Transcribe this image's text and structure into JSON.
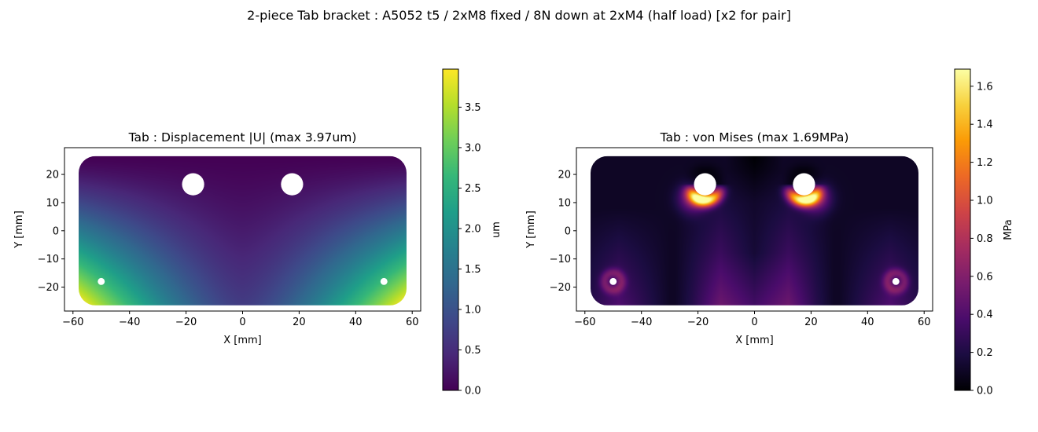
{
  "figure": {
    "suptitle": "2-piece Tab bracket : A5052 t5 / 2xM8 fixed / 8N down at 2xM4 (half load)  [x2 for pair]"
  },
  "chart_data": [
    {
      "type": "heatmap",
      "title": "Tab : Displacement |U|  (max 3.97um)",
      "xlabel": "X [mm]",
      "ylabel": "Y [mm]",
      "xlim": [
        -63,
        63
      ],
      "ylim": [
        -28.5,
        29.5
      ],
      "xticks": [
        -60,
        -40,
        -20,
        0,
        20,
        40,
        60
      ],
      "yticks": [
        -20,
        -10,
        0,
        10,
        20
      ],
      "xticklabels": [
        "−60",
        "−40",
        "−20",
        "0",
        "20",
        "40",
        "60"
      ],
      "yticklabels": [
        "−20",
        "−10",
        "0",
        "10",
        "20"
      ],
      "colormap": "viridis",
      "field": "displacement",
      "plate": {
        "x": [
          -58,
          58
        ],
        "y": [
          -26.5,
          26.5
        ],
        "corner_radius": 6
      },
      "fixed_holes": [
        {
          "x": -17.5,
          "y": 16.5,
          "d": 8
        },
        {
          "x": 17.5,
          "y": 16.5,
          "d": 8
        }
      ],
      "load_holes": [
        {
          "x": -50,
          "y": -18,
          "d": 4
        },
        {
          "x": 50,
          "y": -18,
          "d": 4
        }
      ],
      "max_value": 3.97,
      "colorbar": {
        "label": "um",
        "range": [
          0,
          3.97
        ],
        "ticks": [
          0.0,
          0.5,
          1.0,
          1.5,
          2.0,
          2.5,
          3.0,
          3.5
        ],
        "ticklabels": [
          "0.0",
          "0.5",
          "1.0",
          "1.5",
          "2.0",
          "2.5",
          "3.0",
          "3.5"
        ]
      }
    },
    {
      "type": "heatmap",
      "title": "Tab : von Mises  (max 1.69MPa)",
      "xlabel": "X [mm]",
      "ylabel": "Y [mm]",
      "xlim": [
        -63,
        63
      ],
      "ylim": [
        -28.5,
        29.5
      ],
      "xticks": [
        -60,
        -40,
        -20,
        0,
        20,
        40,
        60
      ],
      "yticks": [
        -20,
        -10,
        0,
        10,
        20
      ],
      "xticklabels": [
        "−60",
        "−40",
        "−20",
        "0",
        "20",
        "40",
        "60"
      ],
      "yticklabels": [
        "−20",
        "−10",
        "0",
        "10",
        "20"
      ],
      "colormap": "inferno",
      "field": "von_mises",
      "plate": {
        "x": [
          -58,
          58
        ],
        "y": [
          -26.5,
          26.5
        ],
        "corner_radius": 6
      },
      "fixed_holes": [
        {
          "x": -17.5,
          "y": 16.5,
          "d": 8
        },
        {
          "x": 17.5,
          "y": 16.5,
          "d": 8
        }
      ],
      "load_holes": [
        {
          "x": -50,
          "y": -18,
          "d": 4
        },
        {
          "x": 50,
          "y": -18,
          "d": 4
        }
      ],
      "max_value": 1.69,
      "colorbar": {
        "label": "MPa",
        "range": [
          0,
          1.69
        ],
        "ticks": [
          0.0,
          0.2,
          0.4,
          0.6,
          0.8,
          1.0,
          1.2,
          1.4,
          1.6
        ],
        "ticklabels": [
          "0.0",
          "0.2",
          "0.4",
          "0.6",
          "0.8",
          "1.0",
          "1.2",
          "1.4",
          "1.6"
        ]
      }
    }
  ]
}
